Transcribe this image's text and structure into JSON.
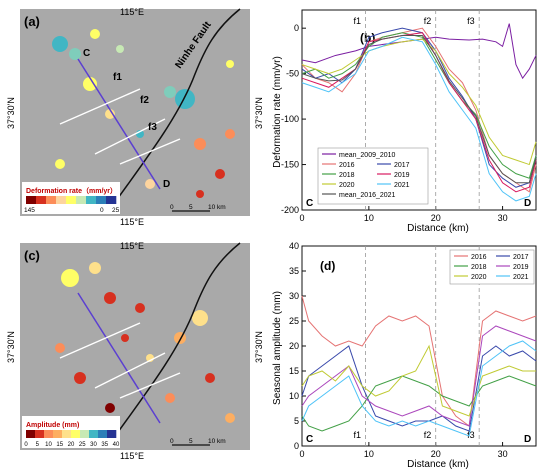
{
  "maps": [
    {
      "panel_label": "(a)",
      "lon_label": "115°E",
      "lat_label": "37°30'N",
      "profile_start": "C",
      "profile_end": "D",
      "fault_labels": [
        "f1",
        "f2",
        "f3"
      ],
      "fault_name": "Ninhe Fault",
      "legend_title": "Deformation rate（mm/yr）",
      "legend_ticks": [
        "145",
        "0",
        "25"
      ],
      "legend_colors": [
        "#7f0000",
        "#d7301f",
        "#fc8d59",
        "#fdd49e",
        "#ffff66",
        "#c7e9b4",
        "#41b6c4",
        "#2c7fb8",
        "#253494"
      ],
      "scale_labels": [
        "0",
        "5",
        "10 km"
      ]
    },
    {
      "panel_label": "(c)",
      "lon_label": "115°E",
      "lat_label": "37°30'N",
      "legend_title": "Amplitude (mm)",
      "legend_ticks": [
        "0",
        "5",
        "10",
        "15",
        "20",
        "25",
        "30",
        "35",
        "40"
      ],
      "legend_colors": [
        "#7f0000",
        "#d7301f",
        "#fc8d59",
        "#fdae61",
        "#fee08b",
        "#ffff66",
        "#c7e9b4",
        "#41b6c4",
        "#2c7fb8",
        "#253494"
      ],
      "scale_labels": [
        "0",
        "5",
        "10 km"
      ]
    }
  ],
  "chart_data": [
    {
      "type": "line",
      "panel_label": "(b)",
      "ylabel": "Deformation rate (mm/yr)",
      "xlabel": "Distance (km)",
      "xlim": [
        0,
        35
      ],
      "ylim": [
        -200,
        20
      ],
      "xticks": [
        0,
        10,
        20,
        30
      ],
      "yticks": [
        0,
        -50,
        -100,
        -150,
        -200
      ],
      "fault_lines": [
        {
          "label": "f1",
          "x": 9.5
        },
        {
          "label": "f2",
          "x": 20
        },
        {
          "label": "f3",
          "x": 26.5
        }
      ],
      "end_labels": {
        "start": "C",
        "end": "D"
      },
      "legend_position": "bottom-left",
      "series": [
        {
          "name": "mean_2009_2010",
          "color": "#7b1fa2",
          "x": [
            0,
            2,
            5,
            8,
            10,
            12,
            15,
            18,
            20,
            22,
            25,
            27,
            29,
            30,
            31,
            32,
            33,
            34,
            35
          ],
          "y": [
            -35,
            -38,
            -30,
            -25,
            -20,
            -18,
            -15,
            -12,
            -10,
            -12,
            -13,
            -12,
            -15,
            -20,
            5,
            -40,
            -55,
            -45,
            -30
          ]
        },
        {
          "name": "2016",
          "color": "#e57373",
          "x": [
            0,
            2,
            4,
            6,
            8,
            10,
            12,
            15,
            18,
            20,
            22,
            24,
            26,
            28,
            30,
            32,
            34,
            35
          ],
          "y": [
            -40,
            -55,
            -60,
            -70,
            -50,
            -15,
            -10,
            -5,
            0,
            -20,
            -45,
            -60,
            -90,
            -140,
            -160,
            -170,
            -180,
            -150
          ]
        },
        {
          "name": "2017",
          "color": "#3949ab",
          "x": [
            0,
            2,
            4,
            6,
            8,
            10,
            12,
            15,
            18,
            20,
            22,
            24,
            26,
            28,
            30,
            32,
            34,
            35
          ],
          "y": [
            -45,
            -55,
            -50,
            -60,
            -45,
            -10,
            -5,
            0,
            -5,
            -25,
            -55,
            -75,
            -100,
            -150,
            -165,
            -175,
            -170,
            -140
          ]
        },
        {
          "name": "2018",
          "color": "#43a047",
          "x": [
            0,
            2,
            4,
            6,
            8,
            10,
            12,
            15,
            18,
            20,
            22,
            24,
            26,
            28,
            30,
            32,
            34,
            35
          ],
          "y": [
            -50,
            -45,
            -55,
            -50,
            -40,
            -20,
            -10,
            -5,
            -10,
            -35,
            -60,
            -80,
            -95,
            -130,
            -150,
            -160,
            -165,
            -140
          ]
        },
        {
          "name": "2019",
          "color": "#d81b60",
          "x": [
            0,
            2,
            4,
            6,
            8,
            10,
            12,
            15,
            18,
            20,
            22,
            24,
            26,
            28,
            30,
            32,
            34,
            35
          ],
          "y": [
            -55,
            -60,
            -65,
            -55,
            -45,
            -15,
            -12,
            -8,
            -5,
            -30,
            -60,
            -80,
            -100,
            -145,
            -170,
            -180,
            -175,
            -145
          ]
        },
        {
          "name": "2020",
          "color": "#c0ca33",
          "x": [
            0,
            2,
            4,
            6,
            8,
            10,
            12,
            15,
            18,
            20,
            22,
            24,
            26,
            28,
            30,
            32,
            34,
            35
          ],
          "y": [
            -40,
            -45,
            -50,
            -45,
            -35,
            -25,
            -20,
            -15,
            -12,
            -25,
            -50,
            -65,
            -85,
            -120,
            -140,
            -145,
            -150,
            -125
          ]
        },
        {
          "name": "2021",
          "color": "#4fc3f7",
          "x": [
            0,
            2,
            4,
            6,
            8,
            10,
            12,
            15,
            18,
            20,
            22,
            24,
            26,
            28,
            30,
            32,
            34,
            35
          ],
          "y": [
            -60,
            -65,
            -70,
            -60,
            -50,
            -25,
            -20,
            -10,
            -15,
            -40,
            -70,
            -90,
            -110,
            -160,
            -180,
            -190,
            -185,
            -160
          ]
        },
        {
          "name": "mean_2016_2021",
          "color": "#555555",
          "x": [
            0,
            2,
            4,
            6,
            8,
            10,
            12,
            15,
            18,
            20,
            22,
            24,
            26,
            28,
            30,
            32,
            34,
            35
          ],
          "y": [
            -50,
            -55,
            -58,
            -57,
            -45,
            -18,
            -12,
            -8,
            -8,
            -30,
            -58,
            -77,
            -97,
            -140,
            -160,
            -170,
            -170,
            -143
          ]
        }
      ]
    },
    {
      "type": "line",
      "panel_label": "(d)",
      "ylabel": "Seasonal amplitude (mm)",
      "xlabel": "Distance (km)",
      "xlim": [
        0,
        35
      ],
      "ylim": [
        0,
        40
      ],
      "xticks": [
        0,
        10,
        20,
        30
      ],
      "yticks": [
        0,
        5,
        10,
        15,
        20,
        25,
        30,
        35,
        40
      ],
      "fault_lines": [
        {
          "label": "f1",
          "x": 9.5
        },
        {
          "label": "f2",
          "x": 20
        },
        {
          "label": "f3",
          "x": 26.5
        }
      ],
      "end_labels": {
        "start": "C",
        "end": "D"
      },
      "legend_position": "top-right",
      "series": [
        {
          "name": "2016",
          "color": "#e57373",
          "x": [
            0,
            1,
            3,
            5,
            7,
            9,
            11,
            13,
            15,
            17,
            19,
            21,
            23,
            25,
            27,
            29,
            31,
            33,
            35
          ],
          "y": [
            30,
            25,
            22,
            20,
            21,
            20,
            24,
            26,
            25,
            26,
            24,
            10,
            6,
            4,
            25,
            27,
            26,
            25,
            26
          ]
        },
        {
          "name": "2017",
          "color": "#3949ab",
          "x": [
            0,
            1,
            3,
            5,
            7,
            9,
            11,
            13,
            15,
            17,
            19,
            21,
            23,
            25,
            27,
            29,
            31,
            33,
            35
          ],
          "y": [
            10,
            14,
            16,
            18,
            20,
            12,
            6,
            5,
            4,
            5,
            5,
            6,
            4,
            3,
            18,
            20,
            18,
            19,
            17
          ]
        },
        {
          "name": "2018",
          "color": "#43a047",
          "x": [
            0,
            1,
            3,
            5,
            7,
            9,
            11,
            13,
            15,
            17,
            19,
            21,
            23,
            25,
            27,
            29,
            31,
            33,
            35
          ],
          "y": [
            6,
            4,
            3,
            4,
            5,
            8,
            12,
            13,
            14,
            13,
            12,
            10,
            9,
            8,
            12,
            13,
            14,
            13,
            12
          ]
        },
        {
          "name": "2019",
          "color": "#ab47bc",
          "x": [
            0,
            1,
            3,
            5,
            7,
            9,
            11,
            13,
            15,
            17,
            19,
            21,
            23,
            25,
            27,
            29,
            31,
            33,
            35
          ],
          "y": [
            8,
            10,
            12,
            14,
            16,
            10,
            8,
            7,
            6,
            7,
            8,
            6,
            5,
            4,
            22,
            24,
            23,
            22,
            21
          ]
        },
        {
          "name": "2020",
          "color": "#c0ca33",
          "x": [
            0,
            1,
            3,
            5,
            7,
            9,
            11,
            13,
            15,
            17,
            19,
            21,
            23,
            25,
            27,
            29,
            31,
            33,
            35
          ],
          "y": [
            12,
            14,
            15,
            13,
            16,
            12,
            10,
            11,
            14,
            15,
            20,
            8,
            7,
            6,
            14,
            15,
            16,
            15,
            15
          ]
        },
        {
          "name": "2021",
          "color": "#4fc3f7",
          "x": [
            0,
            1,
            3,
            5,
            7,
            9,
            11,
            13,
            15,
            17,
            19,
            21,
            23,
            25,
            27,
            29,
            31,
            33,
            35
          ],
          "y": [
            5,
            8,
            10,
            12,
            14,
            8,
            5,
            4,
            5,
            4,
            5,
            4,
            3,
            2,
            16,
            18,
            20,
            21,
            19
          ]
        }
      ]
    }
  ]
}
